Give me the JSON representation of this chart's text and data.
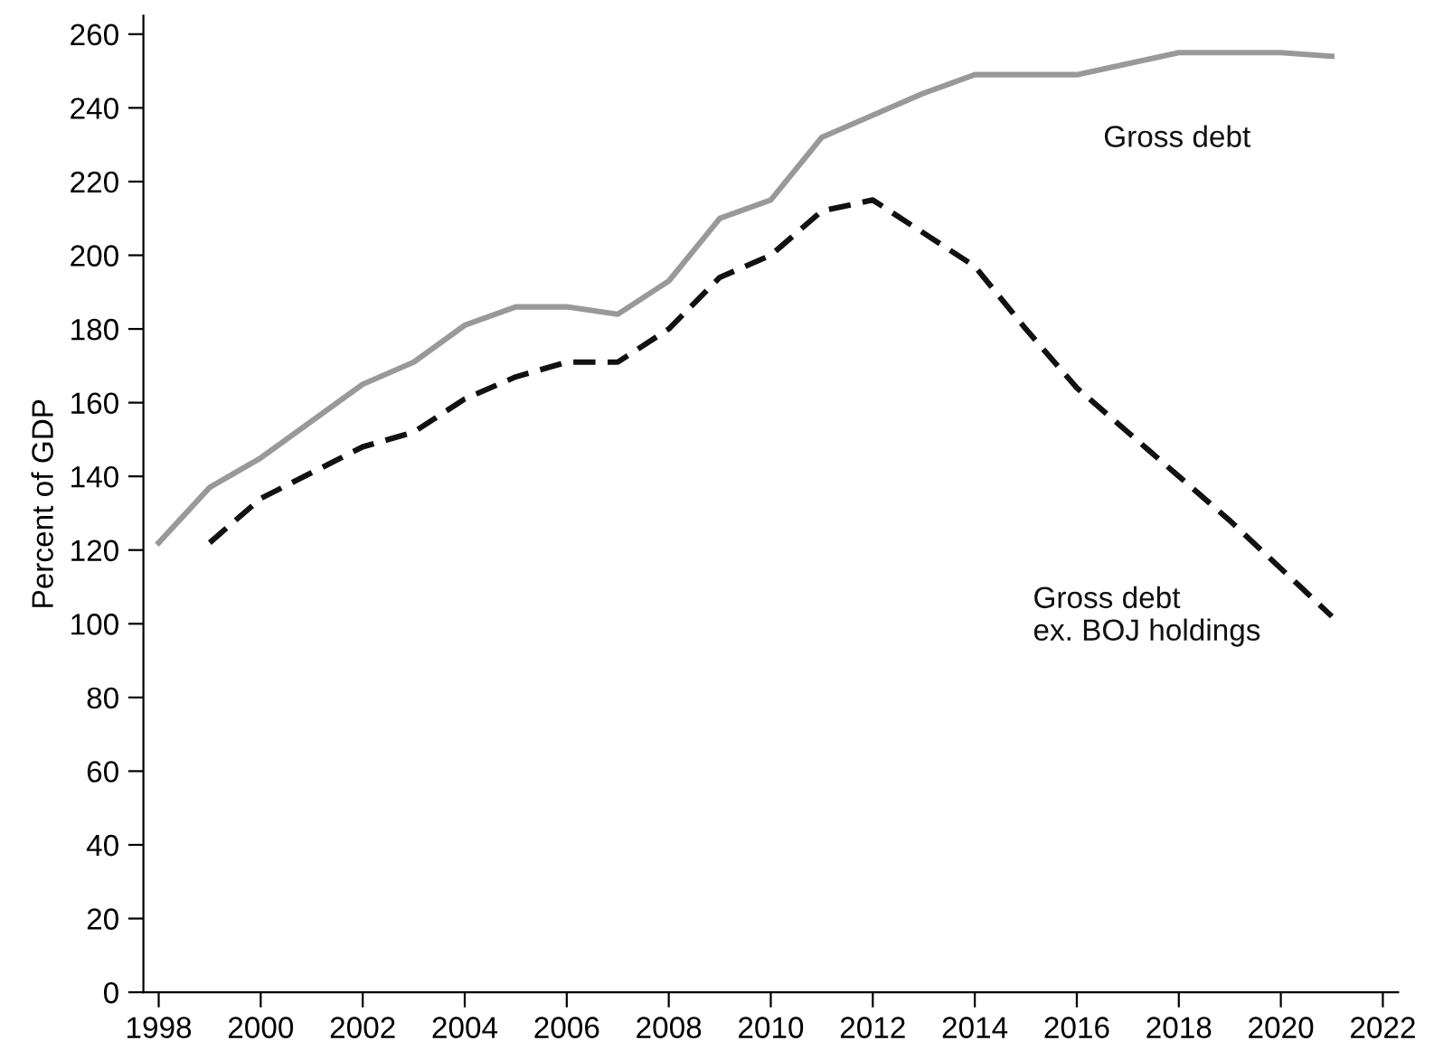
{
  "chart_data": {
    "type": "line",
    "ylabel": "Percent of GDP",
    "xlim": [
      1997.7,
      2022.3
    ],
    "xticks": [
      1998,
      2000,
      2002,
      2004,
      2006,
      2008,
      2010,
      2012,
      2014,
      2016,
      2018,
      2020,
      2022
    ],
    "ylim": [
      0,
      265
    ],
    "yticks": [
      0,
      20,
      40,
      60,
      80,
      100,
      120,
      140,
      160,
      180,
      200,
      220,
      240,
      260
    ],
    "grid": false,
    "legend": false,
    "series": [
      {
        "name": "Gross debt",
        "color": "#999999",
        "line_style": "solid",
        "x": [
          1998,
          1999,
          2000,
          2001,
          2002,
          2003,
          2004,
          2005,
          2006,
          2007,
          2008,
          2009,
          2010,
          2011,
          2012,
          2013,
          2014,
          2015,
          2016,
          2017,
          2018,
          2019,
          2020,
          2021
        ],
        "values": [
          122,
          137,
          145,
          155,
          165,
          171,
          181,
          186,
          186,
          184,
          193,
          210,
          215,
          232,
          238,
          244,
          249,
          249,
          249,
          252,
          255,
          255,
          255,
          254
        ]
      },
      {
        "name": "Gross debt\nex. BOJ holdings",
        "color": "#111111",
        "line_style": "dashed",
        "x": [
          1999,
          2000,
          2001,
          2002,
          2003,
          2004,
          2005,
          2006,
          2007,
          2008,
          2009,
          2010,
          2011,
          2012,
          2013,
          2014,
          2015,
          2016,
          2017,
          2018,
          2019,
          2020,
          2021
        ],
        "values": [
          122,
          134,
          141,
          148,
          152,
          161,
          167,
          171,
          171,
          180,
          194,
          200,
          212,
          215,
          206,
          197,
          180,
          164,
          152,
          140,
          128,
          115,
          102
        ]
      }
    ]
  }
}
